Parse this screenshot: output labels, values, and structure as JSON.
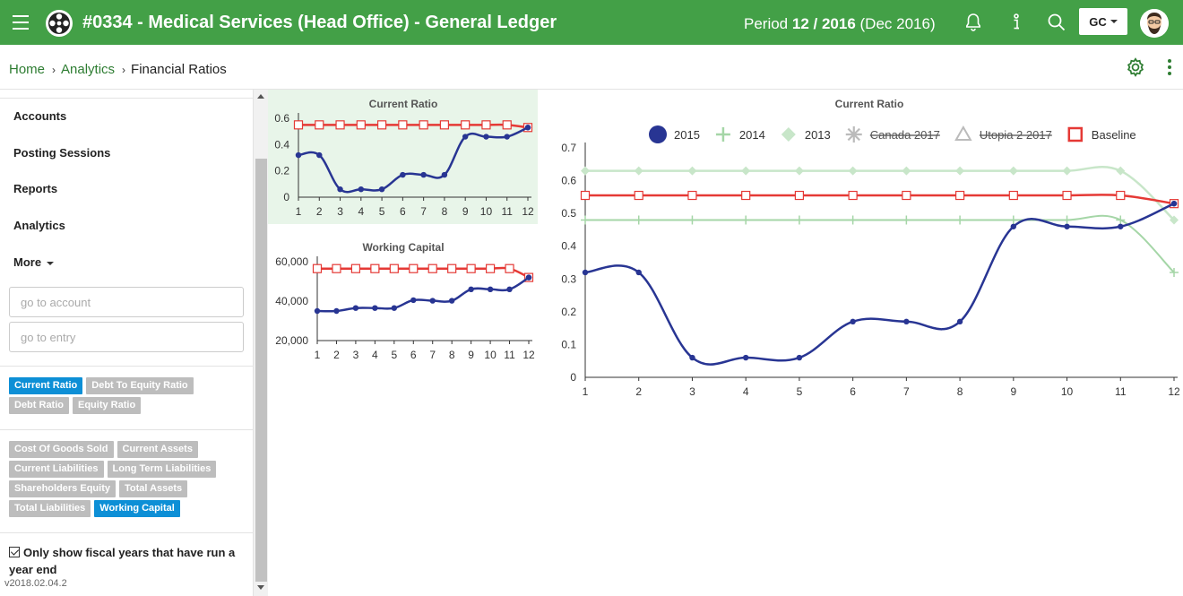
{
  "header": {
    "title": "#0334 - Medical Services (Head Office) - General Ledger",
    "period_prefix": "Period ",
    "period_month": "12",
    "period_sep": " / ",
    "period_year": "2016",
    "period_suffix": " (Dec 2016)",
    "user_button": "GC",
    "icons": [
      "menu-icon",
      "logo-icon",
      "bell-icon",
      "info-icon",
      "search-icon",
      "avatar"
    ]
  },
  "breadcrumb": {
    "home": "Home",
    "analytics": "Analytics",
    "current": "Financial Ratios",
    "separator": "›"
  },
  "sidebar": {
    "items": [
      {
        "label": "Accounts"
      },
      {
        "label": "Posting Sessions"
      },
      {
        "label": "Reports"
      },
      {
        "label": "Analytics"
      },
      {
        "label": "More"
      }
    ],
    "account_placeholder": "go to account",
    "entry_placeholder": "go to entry",
    "ratio_chips": [
      {
        "label": "Current Ratio",
        "active": true
      },
      {
        "label": "Debt To Equity Ratio",
        "active": false
      },
      {
        "label": "Debt Ratio",
        "active": false
      },
      {
        "label": "Equity Ratio",
        "active": false
      }
    ],
    "metric_chips": [
      {
        "label": "Cost Of Goods Sold",
        "active": false
      },
      {
        "label": "Current Assets",
        "active": false
      },
      {
        "label": "Current Liabilities",
        "active": false
      },
      {
        "label": "Long Term Liabilities",
        "active": false
      },
      {
        "label": "Shareholders Equity",
        "active": false
      },
      {
        "label": "Total Assets",
        "active": false
      },
      {
        "label": "Total Liabilities",
        "active": false
      },
      {
        "label": "Working Capital",
        "active": true
      }
    ],
    "fiscal_label": "Only show fiscal years that have run a year end",
    "version": "v2018.02.04.2"
  },
  "colors": {
    "header_bg": "#43a047",
    "link": "#2e7d32",
    "chip_active": "#0d8fd6",
    "chip_inactive": "#bdbdbd",
    "series_2015": "#283593",
    "series_2014": "#a5d6a7",
    "series_2013": "#c8e6c9",
    "baseline": "#e53935"
  },
  "chart_data": [
    {
      "type": "line",
      "title": "Current Ratio",
      "x": [
        1,
        2,
        3,
        4,
        5,
        6,
        7,
        8,
        9,
        10,
        11,
        12
      ],
      "yticks": [
        "0",
        "0.2",
        "0.4",
        "0.6"
      ],
      "ylim": [
        0,
        0.6
      ],
      "series": [
        {
          "name": "2015",
          "values": [
            0.32,
            0.32,
            0.06,
            0.06,
            0.06,
            0.17,
            0.17,
            0.17,
            0.46,
            0.46,
            0.46,
            0.53
          ]
        },
        {
          "name": "Baseline",
          "values": [
            0.55,
            0.55,
            0.55,
            0.55,
            0.55,
            0.55,
            0.55,
            0.55,
            0.55,
            0.55,
            0.55,
            0.53
          ]
        }
      ]
    },
    {
      "type": "line",
      "title": "Working Capital",
      "x": [
        1,
        2,
        3,
        4,
        5,
        6,
        7,
        8,
        9,
        10,
        11,
        12
      ],
      "yticks": [
        "20,000",
        "40,000",
        "60,000"
      ],
      "ylim": [
        20000,
        60000
      ],
      "series": [
        {
          "name": "2015",
          "values": [
            35000,
            35000,
            36500,
            36500,
            36500,
            40500,
            40200,
            40200,
            46000,
            46000,
            46000,
            52000
          ]
        },
        {
          "name": "Baseline",
          "values": [
            56500,
            56500,
            56500,
            56500,
            56500,
            56500,
            56500,
            56500,
            56500,
            56500,
            56500,
            52000
          ]
        }
      ]
    },
    {
      "type": "line",
      "title": "Current Ratio",
      "x": [
        1,
        2,
        3,
        4,
        5,
        6,
        7,
        8,
        9,
        10,
        11,
        12
      ],
      "yticks": [
        "0",
        "0.1",
        "0.2",
        "0.3",
        "0.4",
        "0.5",
        "0.6",
        "0.7"
      ],
      "ylim": [
        0,
        0.7
      ],
      "legend_position": "top",
      "legend": [
        {
          "name": "2015",
          "hidden": false
        },
        {
          "name": "2014",
          "hidden": false
        },
        {
          "name": "2013",
          "hidden": false
        },
        {
          "name": "Canada 2017",
          "hidden": true
        },
        {
          "name": "Utopia 2 2017",
          "hidden": true
        },
        {
          "name": "Baseline",
          "hidden": false
        }
      ],
      "series": [
        {
          "name": "2015",
          "values": [
            0.32,
            0.32,
            0.06,
            0.06,
            0.06,
            0.17,
            0.17,
            0.17,
            0.46,
            0.46,
            0.46,
            0.53
          ]
        },
        {
          "name": "2014",
          "values": [
            0.48,
            0.48,
            0.48,
            0.48,
            0.48,
            0.48,
            0.48,
            0.48,
            0.48,
            0.48,
            0.48,
            0.32
          ]
        },
        {
          "name": "2013",
          "values": [
            0.63,
            0.63,
            0.63,
            0.63,
            0.63,
            0.63,
            0.63,
            0.63,
            0.63,
            0.63,
            0.63,
            0.48
          ]
        },
        {
          "name": "Baseline",
          "values": [
            0.555,
            0.555,
            0.555,
            0.555,
            0.555,
            0.555,
            0.555,
            0.555,
            0.555,
            0.555,
            0.555,
            0.53
          ]
        }
      ]
    }
  ]
}
